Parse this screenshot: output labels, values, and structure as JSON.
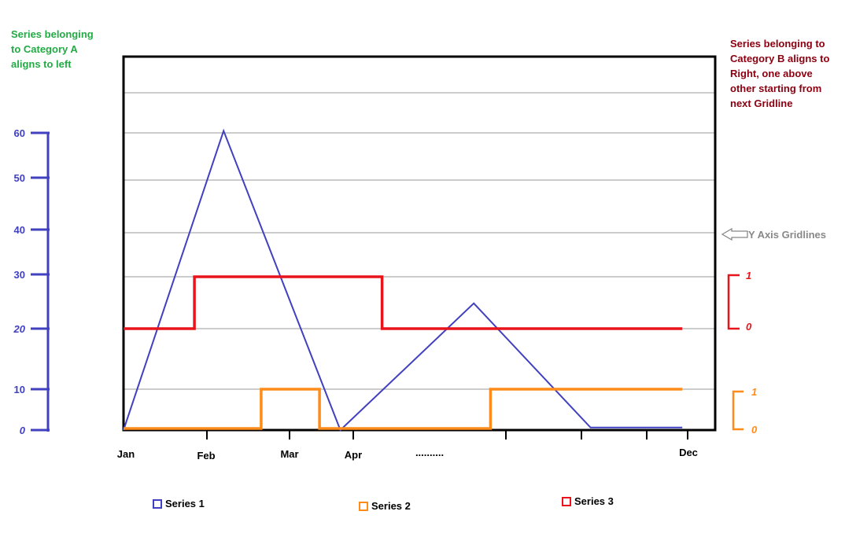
{
  "notes": {
    "category_a": "Series belonging to Category A aligns to left",
    "category_b": "Series belonging to Category B aligns to Right, one above other starting from next Gridline",
    "gridline_label": "Y Axis Gridlines"
  },
  "colors": {
    "series1": "#4040c0",
    "series2": "#ff8c1a",
    "series3": "#e8141c",
    "note_a": "#22aa44",
    "note_b": "#8b0010",
    "gridline_label": "#888888"
  },
  "chart_data": {
    "type": "line",
    "x_tick_labels": [
      "Jan",
      "Feb",
      "Mar",
      "Apr",
      "..........",
      "Dec"
    ],
    "left_axis": {
      "ticks": [
        0,
        10,
        20,
        30,
        40,
        50,
        60
      ],
      "ylim": [
        0,
        60
      ]
    },
    "right_axis_series3": {
      "ticks": [
        0,
        1
      ]
    },
    "right_axis_series2": {
      "ticks": [
        0,
        1
      ]
    },
    "grid": true,
    "legend_placement": "bottom",
    "series": [
      {
        "name": "Series 1",
        "axis": "left",
        "style": "line",
        "x": [
          0,
          1.2,
          2.6,
          4.2,
          5.6,
          6.7
        ],
        "y": [
          0,
          59,
          0,
          25,
          0.5,
          0.5
        ]
      },
      {
        "name": "Series 2",
        "axis": "right-bottom",
        "style": "step",
        "x": [
          0,
          1.65,
          1.65,
          2.35,
          2.35,
          4.4,
          4.4,
          6.7
        ],
        "y": [
          0,
          0,
          1,
          1,
          0,
          0,
          1,
          1
        ]
      },
      {
        "name": "Series 3",
        "axis": "right-top",
        "style": "step",
        "x": [
          0,
          0.85,
          0.85,
          3.1,
          3.1,
          6.7
        ],
        "y": [
          0,
          0,
          1,
          1,
          0,
          0
        ]
      }
    ]
  }
}
